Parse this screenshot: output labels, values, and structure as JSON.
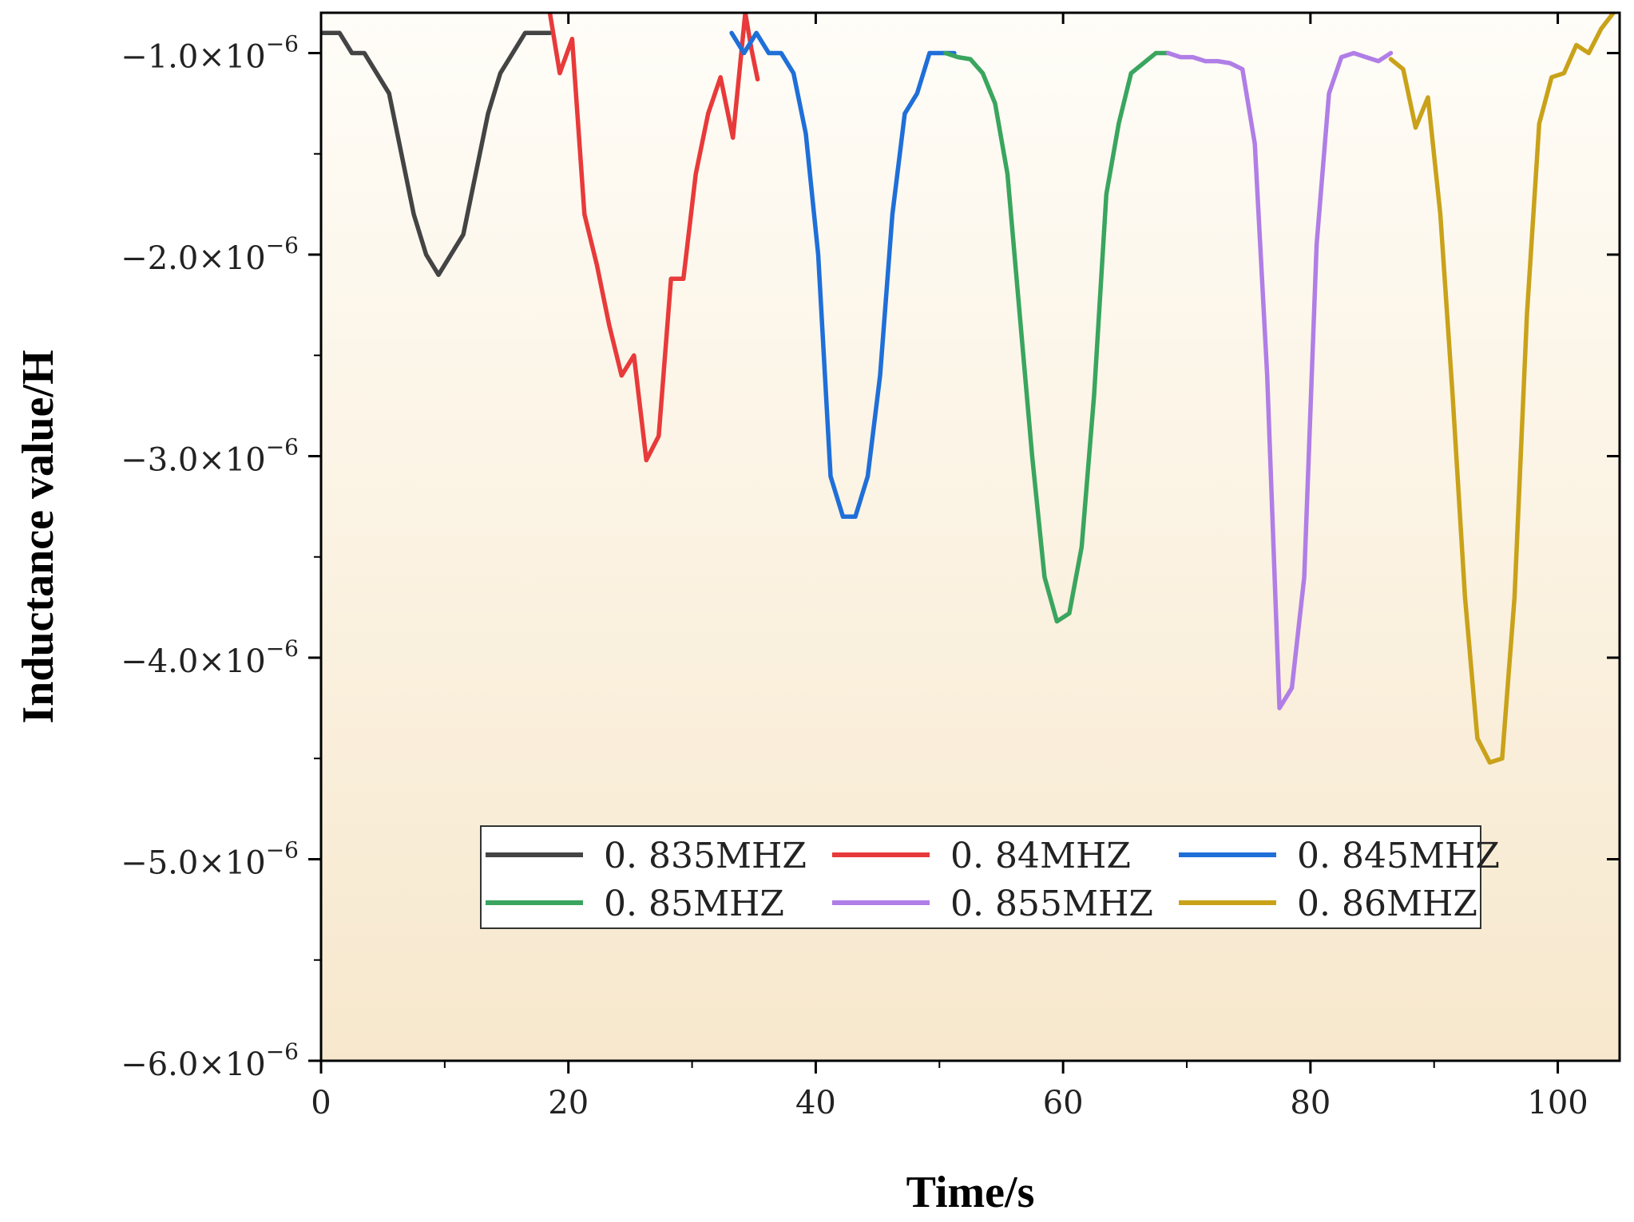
{
  "chart_data": {
    "type": "line",
    "title": "",
    "xlabel": "Time/s",
    "ylabel": "Inductance value/H",
    "xlim": [
      0,
      105
    ],
    "ylim": [
      -6e-06,
      -8e-07
    ],
    "x_ticks": [
      0,
      20,
      40,
      60,
      80,
      100
    ],
    "x_tick_labels": [
      "0",
      "20",
      "40",
      "60",
      "80",
      "100"
    ],
    "y_ticks": [
      -1e-06,
      -2e-06,
      -3e-06,
      -4e-06,
      -5e-06,
      -6e-06
    ],
    "y_tick_mantissas": [
      "−1.0×10",
      "−2.0×10",
      "−3.0×10",
      "−4.0×10",
      "−5.0×10",
      "−6.0×10"
    ],
    "y_tick_exponent": "−6",
    "grid": false,
    "legend_position": "lower-center",
    "series": [
      {
        "name": "0.835MHZ",
        "color": "#444444",
        "x": [
          0,
          1.5,
          2.5,
          3.5,
          5.5,
          7.5,
          8.5,
          9.5,
          11.5,
          13.5,
          14.5,
          16.5,
          18.5
        ],
        "y": [
          -9e-07,
          -9e-07,
          -1e-06,
          -1e-06,
          -1.2e-06,
          -1.8e-06,
          -2e-06,
          -2.1e-06,
          -1.9e-06,
          -1.3e-06,
          -1.1e-06,
          -9e-07,
          -9e-07
        ]
      },
      {
        "name": "0.84MHZ",
        "color": "#e83a3a",
        "x": [
          18.5,
          19.3,
          20.3,
          21.3,
          22.3,
          23.3,
          24.3,
          25.3,
          26.3,
          27.3,
          28.3,
          29.3,
          30.3,
          31.3,
          32.3,
          33.3,
          34.3,
          34.8,
          35.3
        ],
        "y": [
          -8e-07,
          -1.1e-06,
          -9.3e-07,
          -1.8e-06,
          -2.05e-06,
          -2.35e-06,
          -2.6e-06,
          -2.5e-06,
          -3.02e-06,
          -2.9e-06,
          -2.12e-06,
          -2.12e-06,
          -1.6e-06,
          -1.3e-06,
          -1.12e-06,
          -1.42e-06,
          -8e-07,
          -9.8e-07,
          -1.13e-06
        ]
      },
      {
        "name": "0.845MHZ",
        "color": "#1f6fd8",
        "x": [
          33.2,
          34.2,
          35.2,
          36.2,
          37.2,
          38.2,
          39.2,
          40.2,
          41.2,
          42.2,
          43.2,
          44.2,
          45.2,
          46.2,
          47.2,
          48.2,
          49.2,
          50.2,
          51.2
        ],
        "y": [
          -9e-07,
          -1e-06,
          -9e-07,
          -1e-06,
          -1e-06,
          -1.1e-06,
          -1.4e-06,
          -2e-06,
          -3.1e-06,
          -3.3e-06,
          -3.3e-06,
          -3.1e-06,
          -2.6e-06,
          -1.8e-06,
          -1.3e-06,
          -1.2e-06,
          -1e-06,
          -1e-06,
          -1e-06
        ]
      },
      {
        "name": "0.85MHZ",
        "color": "#3aa55e",
        "x": [
          50.5,
          51.5,
          52.5,
          53.5,
          54.5,
          55.5,
          56.5,
          57.5,
          58.5,
          59.5,
          60.5,
          61.5,
          62.5,
          63.5,
          64.5,
          65.5,
          66.5,
          67.5,
          68.5
        ],
        "y": [
          -1e-06,
          -1.02e-06,
          -1.03e-06,
          -1.1e-06,
          -1.25e-06,
          -1.6e-06,
          -2.3e-06,
          -3e-06,
          -3.6e-06,
          -3.82e-06,
          -3.78e-06,
          -3.45e-06,
          -2.7e-06,
          -1.7e-06,
          -1.35e-06,
          -1.1e-06,
          -1.05e-06,
          -1e-06,
          -1e-06
        ]
      },
      {
        "name": "0.855MHZ",
        "color": "#b07ee6",
        "x": [
          68.5,
          69.5,
          70.5,
          71.5,
          72.5,
          73.5,
          74.5,
          75.5,
          76.5,
          77.5,
          78.5,
          79.5,
          80.5,
          81.5,
          82.5,
          83.5,
          84.5,
          85.5,
          86.5
        ],
        "y": [
          -1e-06,
          -1.02e-06,
          -1.02e-06,
          -1.04e-06,
          -1.04e-06,
          -1.05e-06,
          -1.08e-06,
          -1.45e-06,
          -2.6e-06,
          -4.25e-06,
          -4.15e-06,
          -3.6e-06,
          -1.95e-06,
          -1.2e-06,
          -1.02e-06,
          -1e-06,
          -1.02e-06,
          -1.04e-06,
          -1e-06
        ]
      },
      {
        "name": "0.86MHZ",
        "color": "#c9a21a",
        "x": [
          86.5,
          87.5,
          88.5,
          89.5,
          90.5,
          91.5,
          92.5,
          93.5,
          94.5,
          95.5,
          96.5,
          97.5,
          98.5,
          99.5,
          100.5,
          101.5,
          102.5,
          103.5,
          104.5
        ],
        "y": [
          -1.03e-06,
          -1.08e-06,
          -1.37e-06,
          -1.22e-06,
          -1.8e-06,
          -2.7e-06,
          -3.7e-06,
          -4.4e-06,
          -4.52e-06,
          -4.5e-06,
          -3.7e-06,
          -2.3e-06,
          -1.35e-06,
          -1.12e-06,
          -1.1e-06,
          -9.6e-07,
          -1e-06,
          -8.8e-07,
          -8e-07
        ]
      }
    ]
  }
}
